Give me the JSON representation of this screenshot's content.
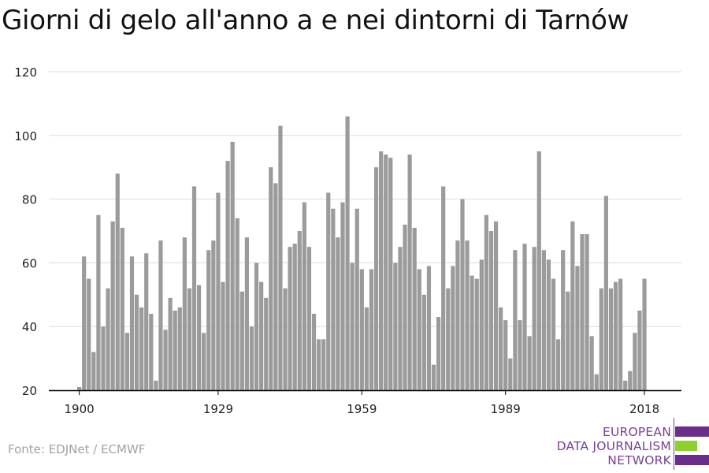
{
  "title": "Giorni di gelo all'anno a e nei dintorni di Tarnów",
  "source": "Fonte: EDJNet / ECMWF",
  "logo": {
    "lines": [
      "EUROPEAN",
      "DATA JOURNALISM",
      "NETWORK"
    ],
    "colors": {
      "text": "#7a3f9a",
      "purple": "#6a2d8c",
      "green": "#8ed12f"
    }
  },
  "colors": {
    "bar": "#9b9b9b",
    "grid": "#dddddd",
    "axis": "#000000"
  },
  "chart_data": {
    "type": "bar",
    "title": "Giorni di gelo all'anno a e nei dintorni di Tarnów",
    "xlabel": "",
    "ylabel": "",
    "ylim": [
      20,
      120
    ],
    "yticks": [
      20,
      40,
      60,
      80,
      100,
      120
    ],
    "xticks": [
      1900,
      1929,
      1959,
      1989,
      2018
    ],
    "grid": true,
    "x": [
      1900,
      1901,
      1902,
      1903,
      1904,
      1905,
      1906,
      1907,
      1908,
      1909,
      1910,
      1911,
      1912,
      1913,
      1914,
      1915,
      1916,
      1917,
      1918,
      1919,
      1920,
      1921,
      1922,
      1923,
      1924,
      1925,
      1926,
      1927,
      1928,
      1929,
      1930,
      1931,
      1932,
      1933,
      1934,
      1935,
      1936,
      1937,
      1938,
      1939,
      1940,
      1941,
      1942,
      1943,
      1944,
      1945,
      1946,
      1947,
      1948,
      1949,
      1950,
      1951,
      1952,
      1953,
      1954,
      1955,
      1956,
      1957,
      1958,
      1959,
      1960,
      1961,
      1962,
      1963,
      1964,
      1965,
      1966,
      1967,
      1968,
      1969,
      1970,
      1971,
      1972,
      1973,
      1974,
      1975,
      1976,
      1977,
      1978,
      1979,
      1980,
      1981,
      1982,
      1983,
      1984,
      1985,
      1986,
      1987,
      1988,
      1989,
      1990,
      1991,
      1992,
      1993,
      1994,
      1995,
      1996,
      1997,
      1998,
      1999,
      2000,
      2001,
      2002,
      2003,
      2004,
      2005,
      2006,
      2007,
      2008,
      2009,
      2010,
      2011,
      2012,
      2013,
      2014,
      2015,
      2016,
      2017,
      2018
    ],
    "values": [
      21,
      62,
      55,
      32,
      75,
      40,
      52,
      73,
      88,
      71,
      38,
      62,
      50,
      46,
      63,
      44,
      23,
      67,
      39,
      49,
      45,
      46,
      68,
      52,
      84,
      53,
      38,
      64,
      67,
      82,
      54,
      92,
      98,
      74,
      51,
      68,
      40,
      60,
      54,
      49,
      90,
      85,
      103,
      52,
      65,
      66,
      70,
      79,
      65,
      44,
      36,
      36,
      82,
      77,
      68,
      79,
      106,
      60,
      77,
      58,
      46,
      58,
      90,
      95,
      94,
      93,
      60,
      65,
      72,
      94,
      71,
      58,
      50,
      59,
      28,
      43,
      84,
      52,
      59,
      67,
      80,
      67,
      56,
      55,
      61,
      75,
      70,
      73,
      46,
      42,
      30,
      64,
      42,
      66,
      37,
      65,
      95,
      64,
      61,
      55,
      36,
      64,
      51,
      73,
      59,
      69,
      69,
      37,
      25,
      52,
      81,
      52,
      54,
      55,
      23,
      26,
      38,
      45,
      55
    ]
  }
}
